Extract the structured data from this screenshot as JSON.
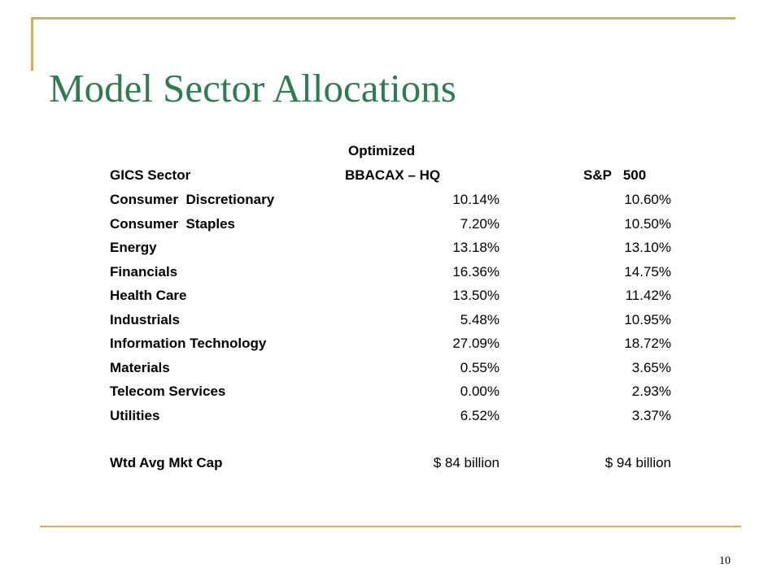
{
  "slide": {
    "title": "Model Sector Allocations",
    "page_number": "10"
  },
  "table": {
    "group_header": "Optimized",
    "columns": [
      "GICS Sector",
      "BBACAX – HQ",
      "S&P   500"
    ],
    "rows": [
      {
        "sector": "Consumer  Discretionary",
        "fund": "10.14%",
        "sp500": "10.60%"
      },
      {
        "sector": "Consumer  Staples",
        "fund": "7.20%",
        "sp500": "10.50%"
      },
      {
        "sector": "Energy",
        "fund": "13.18%",
        "sp500": "13.10%"
      },
      {
        "sector": "Financials",
        "fund": "16.36%",
        "sp500": "14.75%"
      },
      {
        "sector": "Health Care",
        "fund": "13.50%",
        "sp500": "11.42%"
      },
      {
        "sector": "Industrials",
        "fund": "5.48%",
        "sp500": "10.95%"
      },
      {
        "sector": "Information Technology",
        "fund": "27.09%",
        "sp500": "18.72%"
      },
      {
        "sector": "Materials",
        "fund": "0.55%",
        "sp500": "3.65%"
      },
      {
        "sector": "Telecom Services",
        "fund": "0.00%",
        "sp500": "2.93%"
      },
      {
        "sector": "Utilities",
        "fund": "6.52%",
        "sp500": "3.37%"
      }
    ],
    "summary": {
      "label": "Wtd Avg Mkt Cap",
      "fund": "$ 84 billion",
      "sp500": "$ 94 billion"
    }
  },
  "colors": {
    "title": "#2e7d4f",
    "rules": "#c9b458"
  }
}
